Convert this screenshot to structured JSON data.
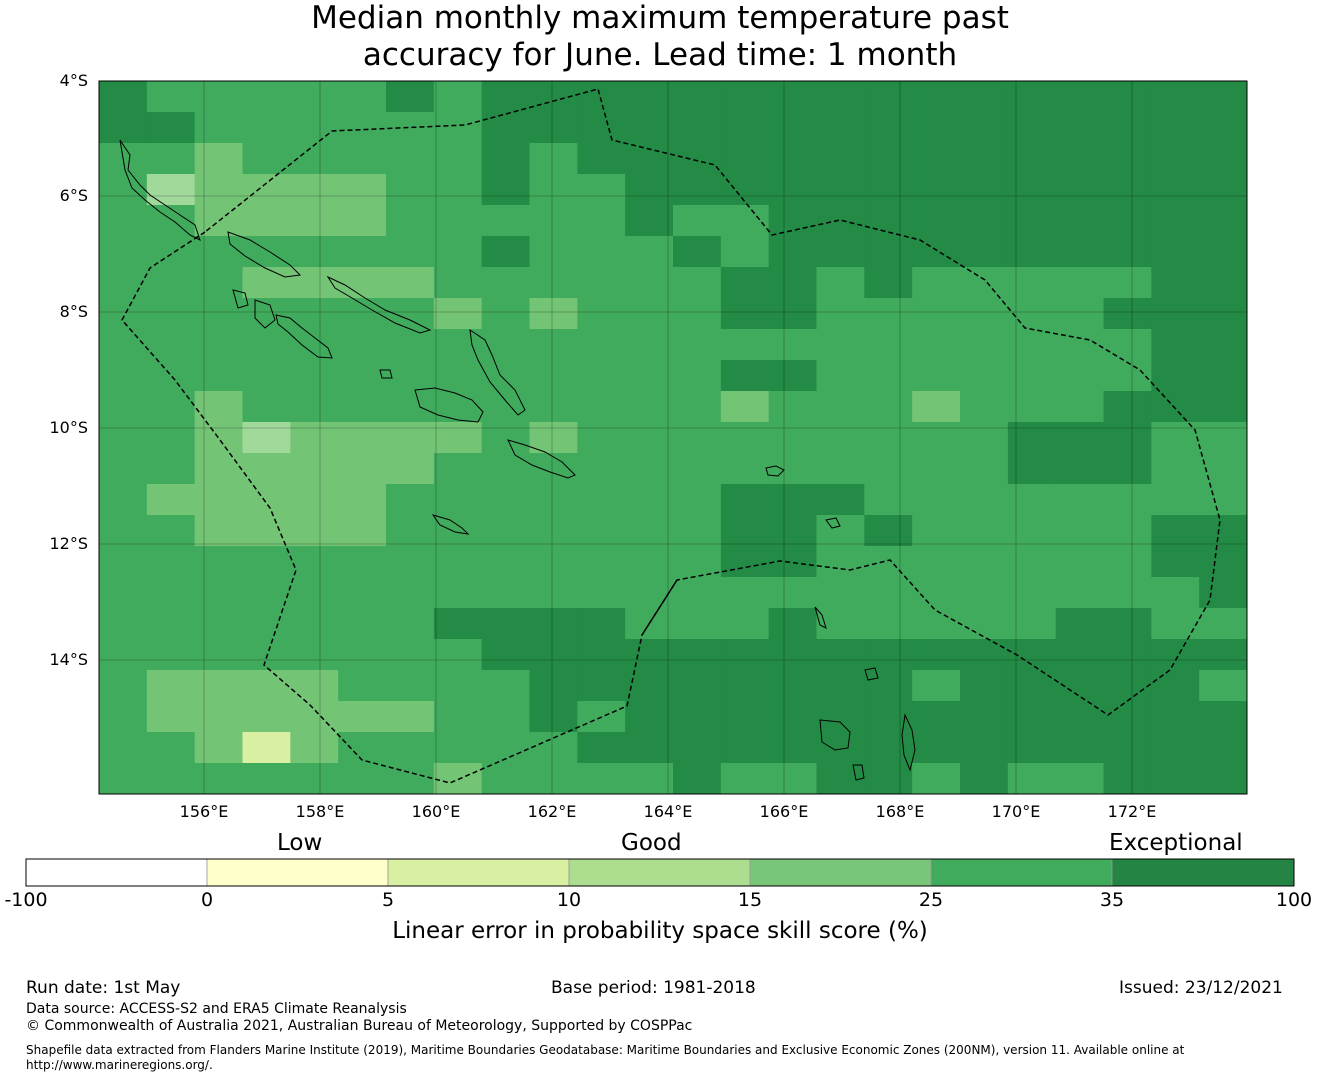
{
  "title_line1": "Median monthly maximum temperature past",
  "title_line2": "accuracy for June. Lead time: 1 month",
  "map": {
    "lat_labels": [
      "4°S",
      "6°S",
      "8°S",
      "10°S",
      "12°S",
      "14°S"
    ],
    "lon_labels": [
      "156°E",
      "158°E",
      "160°E",
      "162°E",
      "164°E",
      "166°E",
      "168°E",
      "170°E",
      "172°E"
    ],
    "region": "Solomon Islands and Vanuatu, South-west Pacific",
    "colors": {
      "dark": "#238b45",
      "medium": "#41ab5d",
      "light": "#74c476",
      "lighter": "#a1d99b",
      "pale": "#d9f0a3",
      "coast": "#000000"
    }
  },
  "colorbar": {
    "categories": [
      "Low",
      "Good",
      "Exceptional"
    ],
    "ticks": [
      "-100",
      "0",
      "5",
      "10",
      "15",
      "25",
      "35",
      "100"
    ],
    "colors": [
      "#ffffff",
      "#ffffcc",
      "#d9f0a3",
      "#addd8e",
      "#78c679",
      "#41ab5d",
      "#238443"
    ],
    "title": "Linear error in probability space skill score (%)"
  },
  "footer": {
    "run_date": "Run date: 1st May",
    "base_period": "Base period: 1981-2018",
    "issued": "Issued: 23/12/2021",
    "data_source": "Data source: ACCESS-S2 and ERA5 Climate Reanalysis",
    "copyright": "© Commonwealth of Australia 2021, Australian Bureau of Meteorology, Supported by COSPPac",
    "shapefile": "Shapefile data extracted from Flanders Marine Institute (2019), Maritime Boundaries Geodatabase: Maritime Boundaries and Exclusive Economic Zones (200NM), version 11. Available online at http://www.marineregions.org/."
  }
}
